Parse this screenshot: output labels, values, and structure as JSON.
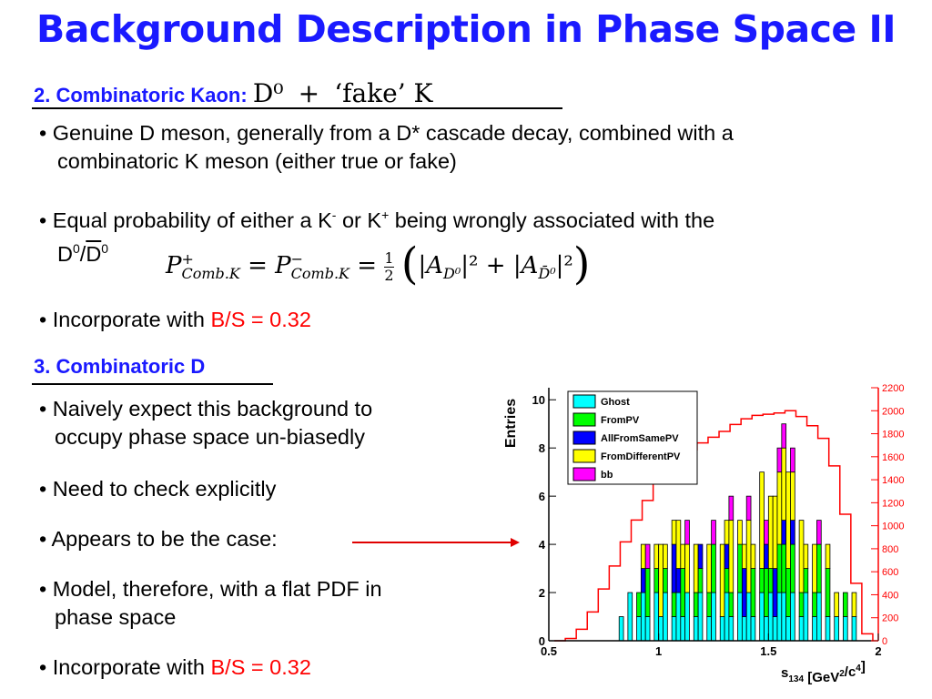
{
  "title": "Background Description in Phase Space II",
  "section2": {
    "label": "2. Combinatoric Kaon:",
    "expr_d0": "D⁰",
    "expr_plus": "+",
    "expr_fake": "‘fake’ K"
  },
  "bullets2": {
    "b1_line1": "Genuine D meson, generally from a D* cascade decay, combined with a",
    "b1_line2": "combinatoric K meson (either true or fake)",
    "b2_text": "Equal probability of either a K",
    "b2_kminus": "-",
    "b2_or": "or K",
    "b2_kplus": "+",
    "b2_rest": "being wrongly associated with the",
    "b2_line2_d": "D",
    "b2_line2_sup1": "0",
    "b2_line2_slash": "/",
    "b2_line2_dbar": "D",
    "b2_line2_sup2": "0",
    "b3_text": "Incorporate with",
    "b3_ratio": "B/S = 0.32"
  },
  "formula": {
    "lhs": "P",
    "sup_plus": "+",
    "sub": "Comb.K",
    "eq": "=",
    "rhs_p": "P",
    "sup_minus": "−",
    "rhs_sub": "Comb.K",
    "frac_num": "1",
    "frac_den": "2",
    "paren_open": "(",
    "abs_a": "|A",
    "sub_d0": "D⁰",
    "sq": "|²",
    "plus": "+",
    "abs_a2": "|A",
    "sub_d0bar": "D̄⁰",
    "sq2": "|²",
    "paren_close": ")"
  },
  "section3": {
    "label": "3. Combinatoric D"
  },
  "bullets3": [
    {
      "line1": "Naively expect this background to",
      "line2": "occupy phase space un-biasedly"
    },
    {
      "line1": "Need to check explicitly",
      "line2": ""
    },
    {
      "line1": "Appears to be the case:",
      "line2": ""
    },
    {
      "line1": "Model, therefore, with a flat PDF in",
      "line2": "phase space"
    }
  ],
  "bullet_last": {
    "text": "Incorporate with",
    "ratio": "B/S = 0.32"
  },
  "colors": {
    "blue": "#1a1aff",
    "red": "#ff0000",
    "ghost": "#00ffff",
    "frompv": "#00ff00",
    "allfromsamepv": "#0000ff",
    "fromdifferentpv": "#ffff00",
    "bb": "#ff00ff"
  },
  "chart_data": {
    "type": "bar",
    "xlabel": "s134 [GeV2/c4]",
    "ylabel": "Entries",
    "x_ticks": [
      "0.5",
      "1",
      "1.5",
      "2"
    ],
    "xlim": [
      0.5,
      2
    ],
    "y_ticks_left": [
      "0",
      "2",
      "4",
      "6",
      "8",
      "10"
    ],
    "ylim_left": [
      0,
      10.5
    ],
    "y_ticks_right": [
      "0",
      "200",
      "400",
      "600",
      "800",
      "1000",
      "1200",
      "1400",
      "1600",
      "1800",
      "2000",
      "2200"
    ],
    "ylim_right": [
      0,
      2200
    ],
    "legend": [
      "Ghost",
      "FromPV",
      "AllFromSamePV",
      "FromDifferentPV",
      "bb"
    ],
    "bin_width": 0.02,
    "stacked_bins": [
      {
        "x": 0.83,
        "ghost": 1
      },
      {
        "x": 0.87,
        "ghost": 2
      },
      {
        "x": 0.91,
        "ghost": 1,
        "frompv": 1
      },
      {
        "x": 0.93,
        "ghost": 2,
        "fromdifferentpv": 1,
        "allfromsamepv": 1
      },
      {
        "x": 0.95,
        "ghost": 1,
        "frompv": 2,
        "bb": 1
      },
      {
        "x": 0.99,
        "ghost": 2,
        "frompv": 1,
        "fromdifferentpv": 1
      },
      {
        "x": 1.01,
        "ghost": 1,
        "fromdifferentpv": 3
      },
      {
        "x": 1.03,
        "ghost": 2,
        "frompv": 1,
        "fromdifferentpv": 1
      },
      {
        "x": 1.07,
        "ghost": 1,
        "allfromsamepv": 2,
        "frompv": 1,
        "fromdifferentpv": 1
      },
      {
        "x": 1.09,
        "ghost": 2,
        "fromdifferentpv": 2,
        "allfromsamepv": 1
      },
      {
        "x": 1.11,
        "ghost": 1,
        "frompv": 2,
        "fromdifferentpv": 1
      },
      {
        "x": 1.13,
        "ghost": 2,
        "fromdifferentpv": 2,
        "bb": 1
      },
      {
        "x": 1.17,
        "ghost": 1,
        "frompv": 1,
        "fromdifferentpv": 2
      },
      {
        "x": 1.19,
        "ghost": 2,
        "allfromsamepv": 1,
        "frompv": 1
      },
      {
        "x": 1.23,
        "ghost": 1,
        "fromdifferentpv": 2,
        "frompv": 1
      },
      {
        "x": 1.25,
        "ghost": 2,
        "frompv": 2,
        "bb": 1
      },
      {
        "x": 1.29,
        "ghost": 1,
        "fromdifferentpv": 3
      },
      {
        "x": 1.31,
        "ghost": 2,
        "frompv": 1,
        "allfromsamepv": 1,
        "fromdifferentpv": 1
      },
      {
        "x": 1.33,
        "ghost": 1,
        "fromdifferentpv": 3,
        "frompv": 1,
        "bb": 1
      },
      {
        "x": 1.37,
        "ghost": 2,
        "frompv": 2,
        "fromdifferentpv": 1
      },
      {
        "x": 1.39,
        "ghost": 1,
        "allfromsamepv": 2,
        "fromdifferentpv": 1
      },
      {
        "x": 1.41,
        "ghost": 2,
        "fromdifferentpv": 3,
        "bb": 1
      },
      {
        "x": 1.43,
        "ghost": 1,
        "frompv": 2,
        "fromdifferentpv": 1
      },
      {
        "x": 1.47,
        "ghost": 2,
        "fromdifferentpv": 4,
        "frompv": 1
      },
      {
        "x": 1.49,
        "ghost": 1,
        "frompv": 2,
        "allfromsamepv": 1,
        "bb": 1
      },
      {
        "x": 1.51,
        "ghost": 2,
        "fromdifferentpv": 3,
        "frompv": 1
      },
      {
        "x": 1.53,
        "ghost": 1,
        "fromdifferentpv": 3,
        "allfromsamepv": 2
      },
      {
        "x": 1.55,
        "ghost": 2,
        "frompv": 2,
        "fromdifferentpv": 3,
        "bb": 1
      },
      {
        "x": 1.57,
        "ghost": 2,
        "frompv": 2,
        "fromdifferentpv": 3,
        "allfromsamepv": 1,
        "bb": 1
      },
      {
        "x": 1.59,
        "ghost": 1,
        "fromdifferentpv": 4,
        "frompv": 2
      },
      {
        "x": 1.61,
        "ghost": 2,
        "frompv": 2,
        "fromdifferentpv": 2,
        "allfromsamepv": 1,
        "bb": 1
      },
      {
        "x": 1.65,
        "ghost": 1,
        "fromdifferentpv": 3,
        "frompv": 1
      },
      {
        "x": 1.67,
        "ghost": 2,
        "frompv": 1,
        "fromdifferentpv": 1
      },
      {
        "x": 1.71,
        "ghost": 1,
        "fromdifferentpv": 2,
        "frompv": 1
      },
      {
        "x": 1.73,
        "ghost": 2,
        "frompv": 2,
        "bb": 1
      },
      {
        "x": 1.77,
        "ghost": 1,
        "frompv": 2,
        "fromdifferentpv": 1
      },
      {
        "x": 1.81,
        "ghost": 1,
        "fromdifferentpv": 1
      },
      {
        "x": 1.85,
        "ghost": 1,
        "frompv": 1
      },
      {
        "x": 1.89,
        "ghost": 1,
        "fromdifferentpv": 1
      }
    ],
    "red_curve": {
      "x": [
        0.55,
        0.6,
        0.65,
        0.7,
        0.75,
        0.8,
        0.85,
        0.9,
        0.95,
        1.0,
        1.05,
        1.1,
        1.15,
        1.2,
        1.25,
        1.3,
        1.35,
        1.4,
        1.45,
        1.5,
        1.55,
        1.6,
        1.65,
        1.7,
        1.75,
        1.8,
        1.85,
        1.9,
        1.95
      ],
      "y": [
        0,
        20,
        100,
        250,
        450,
        650,
        860,
        1050,
        1220,
        1370,
        1490,
        1590,
        1660,
        1720,
        1770,
        1820,
        1880,
        1930,
        1960,
        1970,
        1980,
        2000,
        1950,
        1870,
        1760,
        1520,
        1100,
        500,
        60
      ]
    }
  }
}
